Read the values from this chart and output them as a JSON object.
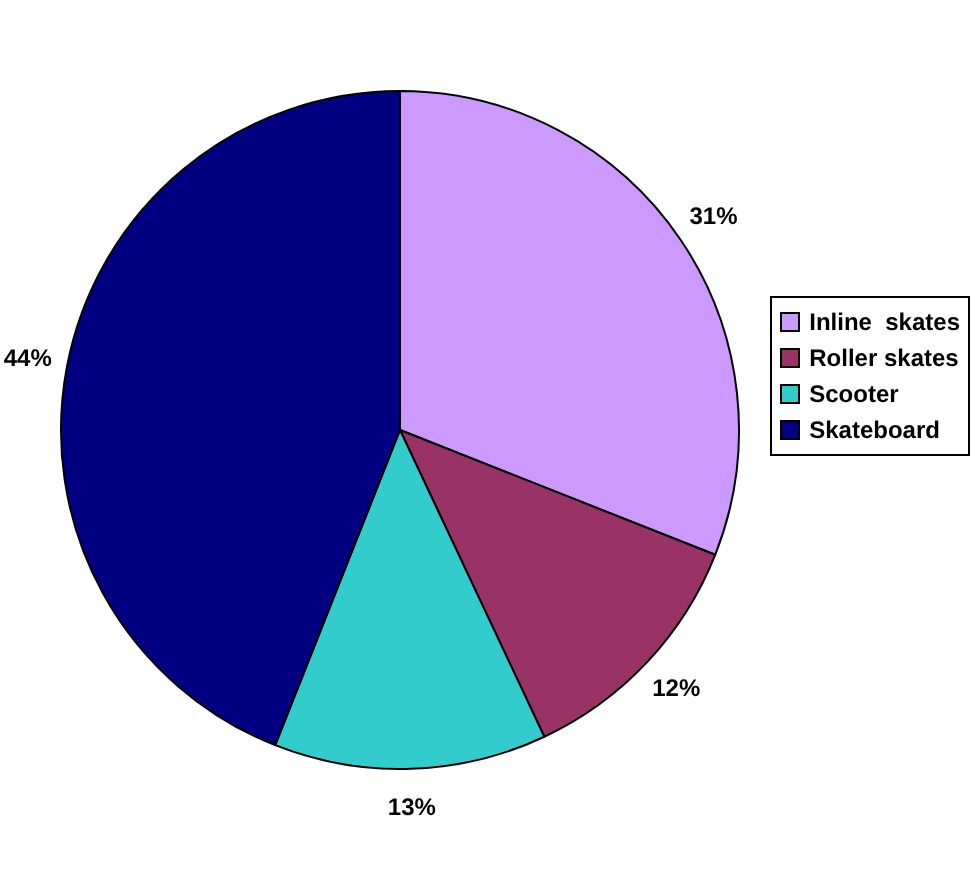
{
  "chart_data": {
    "type": "pie",
    "categories": [
      "Inline  skates",
      "Roller skates",
      "Scooter",
      "Skateboard"
    ],
    "values": [
      31,
      12,
      13,
      44
    ],
    "colors": [
      "#cc99ff",
      "#993366",
      "#33cccc",
      "#000080"
    ],
    "value_labels": [
      "31%",
      "12%",
      "13%",
      "44%"
    ],
    "legend": "right"
  }
}
